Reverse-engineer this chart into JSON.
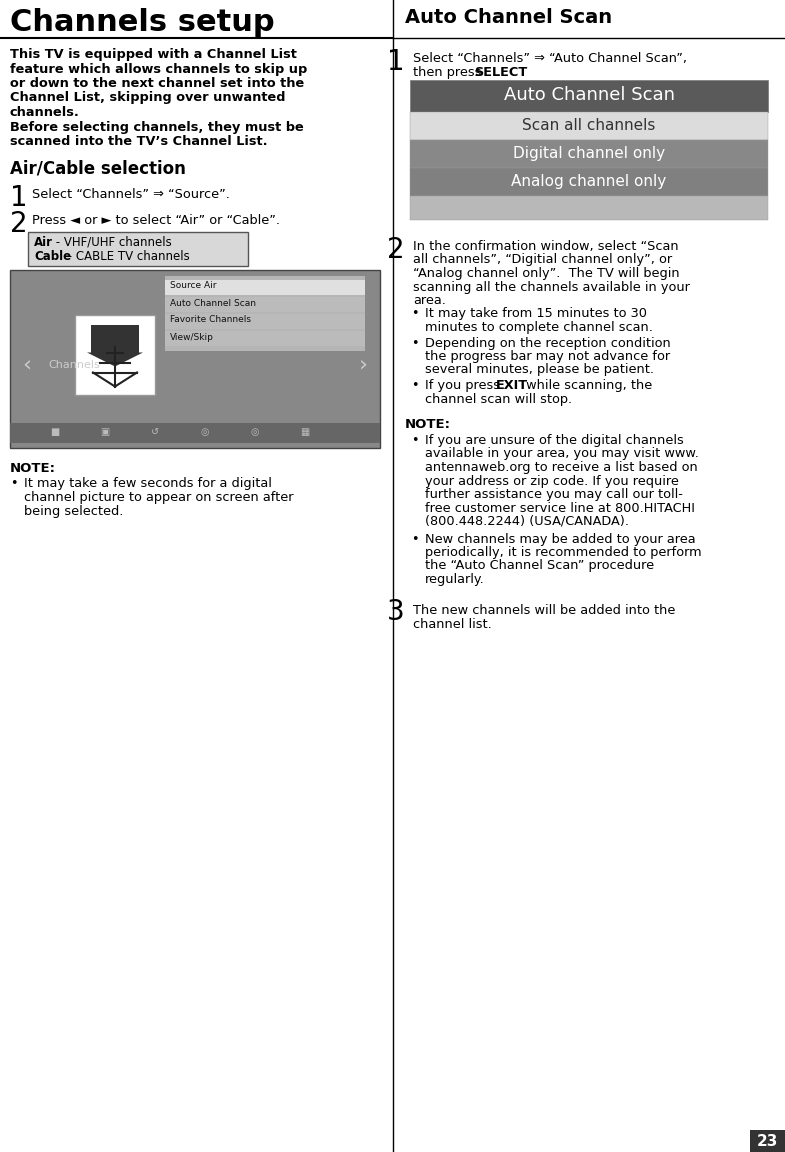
{
  "page_bg": "#ffffff",
  "page_num": "23",
  "left_title": "Channels setup",
  "lines_intro": [
    "This TV is equipped with a Channel List",
    "feature which allows channels to skip up",
    "or down to the next channel set into the",
    "Channel List, skipping over unwanted",
    "channels.",
    "Before selecting channels, they must be",
    "scanned into the TV’s Channel List."
  ],
  "air_cable_heading": "Air/Cable selection",
  "step1_left": "Select “Channels” ⇒ “Source”.",
  "step2_left": "Press ◄ or ► to select “Air” or “Cable”.",
  "air_cable_box_line1": "Air - VHF/UHF channels",
  "air_cable_box_line2": "Cable - CABLE TV channels",
  "tv_screen_menu": [
    "Source Air",
    "Auto Channel Scan",
    "Favorite Channels",
    "View/Skip"
  ],
  "tv_screen_label": "Channels",
  "note_left_heading": "NOTE:",
  "note_left_lines": [
    "It may take a few seconds for a digital",
    "channel picture to appear on screen after",
    "being selected."
  ],
  "right_title": "Auto Channel Scan",
  "step1_right_line1": "Select “Channels” ⇒ “Auto Channel Scan”,",
  "menu_title": "Auto Channel Scan",
  "menu_items": [
    "Scan all channels",
    "Digital channel only",
    "Analog channel only"
  ],
  "menu_title_bg": "#5a5a5a",
  "menu_title_fg": "#ffffff",
  "menu_item_bgs": [
    "#dcdcdc",
    "#888888",
    "#808080"
  ],
  "menu_item_fgs": [
    "#333333",
    "#ffffff",
    "#ffffff"
  ],
  "menu_extra_bg": "#b8b8b8",
  "step2_right_lines": [
    "In the confirmation window, select “Scan",
    "all channels”, “Digitial channel only”, or",
    "“Analog channel only”.  The TV will begin",
    "scanning all the channels available in your",
    "area."
  ],
  "step2_bullets": [
    [
      "It may take from 15 minutes to 30",
      "minutes to complete channel scan."
    ],
    [
      "Depending on the reception condition",
      "the progress bar may not advance for",
      "several minutes, please be patient."
    ],
    [
      "If you press EXIT while scanning, the",
      "channel scan will stop."
    ]
  ],
  "step2_bullet3_exit_idx": 0,
  "step2_bullet3_exit_prefix": "If you press ",
  "step2_bullet3_exit_word": "EXIT",
  "step2_bullet3_exit_suffix": " while scanning, the",
  "note_right_heading": "NOTE:",
  "note_right_bullet1_lines": [
    "If you are unsure of the digital channels",
    "available in your area, you may visit www.",
    "antennaweb.org to receive a list based on",
    "your address or zip code. If you require",
    "further assistance you may call our toll-",
    "free customer service line at 800.HITACHI",
    "(800.448.2244) (USA/CANADA)."
  ],
  "note_right_bullet2_lines": [
    "New channels may be added to your area",
    "periodically, it is recommended to perform",
    "the “Auto Channel Scan” procedure",
    "regularly."
  ],
  "step3_right_lines": [
    "The new channels will be added into the",
    "channel list."
  ]
}
